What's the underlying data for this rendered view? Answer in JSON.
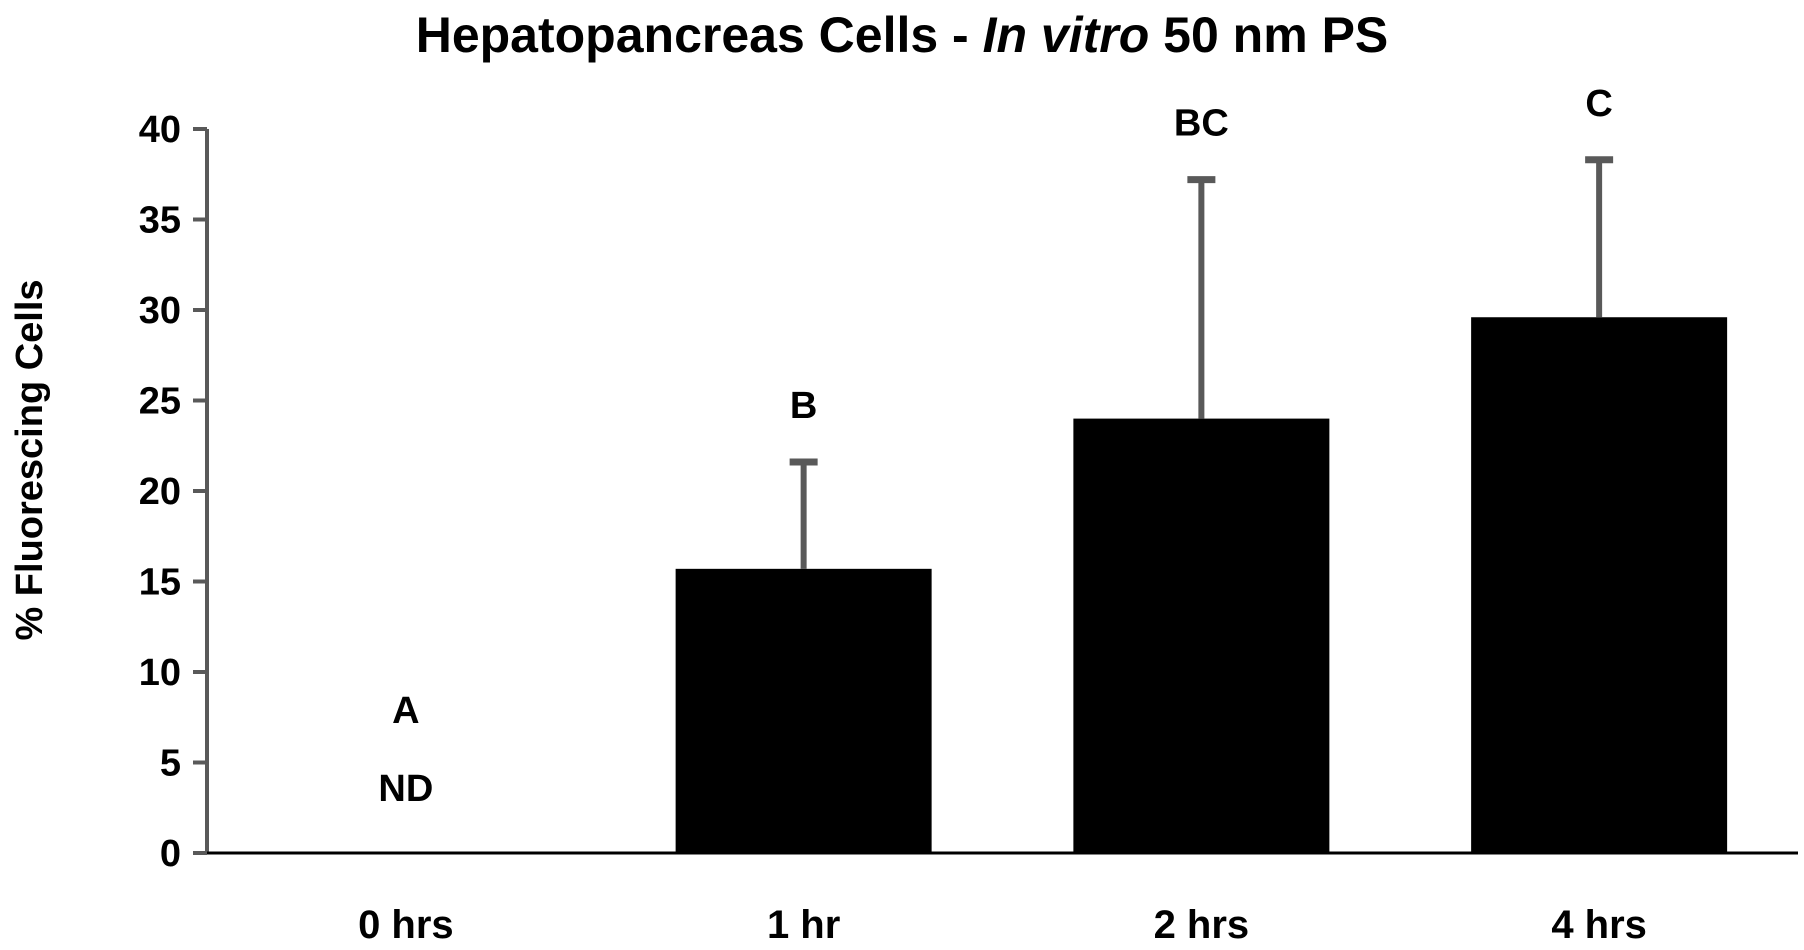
{
  "chart_data": {
    "type": "bar",
    "title": {
      "prefix": "Hepatopancreas Cells - ",
      "italic": "In vitro",
      "suffix": " 50 nm PS"
    },
    "xlabel": "",
    "ylabel": "% Fluorescing Cells",
    "ylim": [
      0,
      40
    ],
    "yticks": [
      0,
      5,
      10,
      15,
      20,
      25,
      30,
      35,
      40
    ],
    "categories": [
      "0 hrs",
      "1 hr",
      "2 hrs",
      "4 hrs"
    ],
    "values": [
      0,
      15.7,
      24.0,
      29.6
    ],
    "errors": [
      null,
      5.9,
      13.2,
      8.7
    ],
    "significance_letters": [
      "A",
      "B",
      "BC",
      "C"
    ],
    "bar_annotations": [
      "ND",
      "",
      "",
      ""
    ],
    "grid": false,
    "legend": "none",
    "colors": {
      "bar": "#000000",
      "error_bar": "#595959",
      "axis": "#595959"
    }
  }
}
